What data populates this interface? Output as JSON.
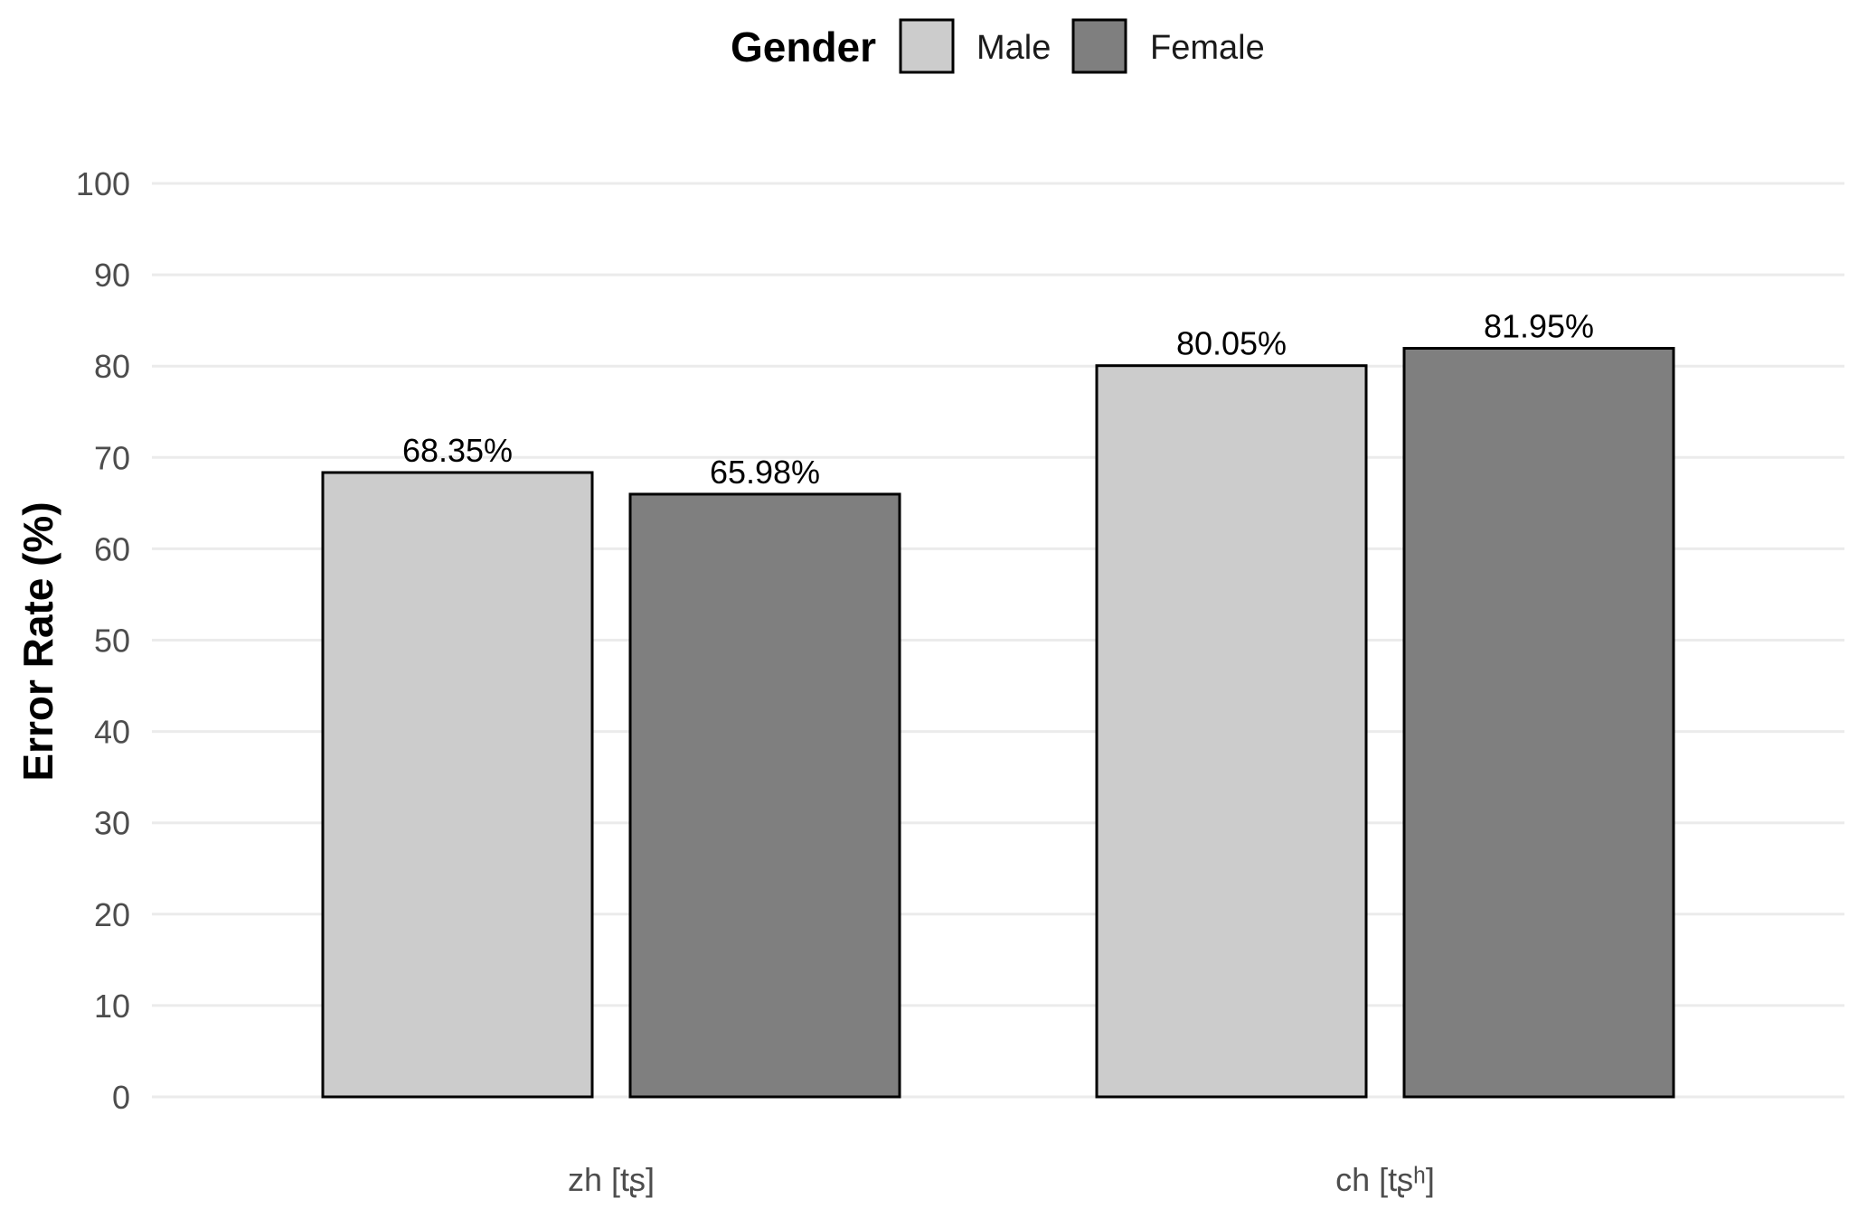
{
  "chart_data": {
    "type": "bar",
    "title": "",
    "xlabel": "",
    "ylabel": "Error Rate (%)",
    "ylim": [
      0,
      100
    ],
    "yticks": [
      0,
      10,
      20,
      30,
      40,
      50,
      60,
      70,
      80,
      90,
      100
    ],
    "grid": true,
    "categories": [
      "zh [tʂ]",
      "ch [tʂʰ]"
    ],
    "legend": {
      "title": "Gender",
      "placement": "top"
    },
    "series": [
      {
        "name": "Male",
        "color": "#cccccc",
        "values": [
          68.35,
          80.05
        ],
        "labels": [
          "68.35%",
          "80.05%"
        ]
      },
      {
        "name": "Female",
        "color": "#7f7f7f",
        "values": [
          65.98,
          81.95
        ],
        "labels": [
          "65.98%",
          "81.95%"
        ]
      }
    ]
  }
}
